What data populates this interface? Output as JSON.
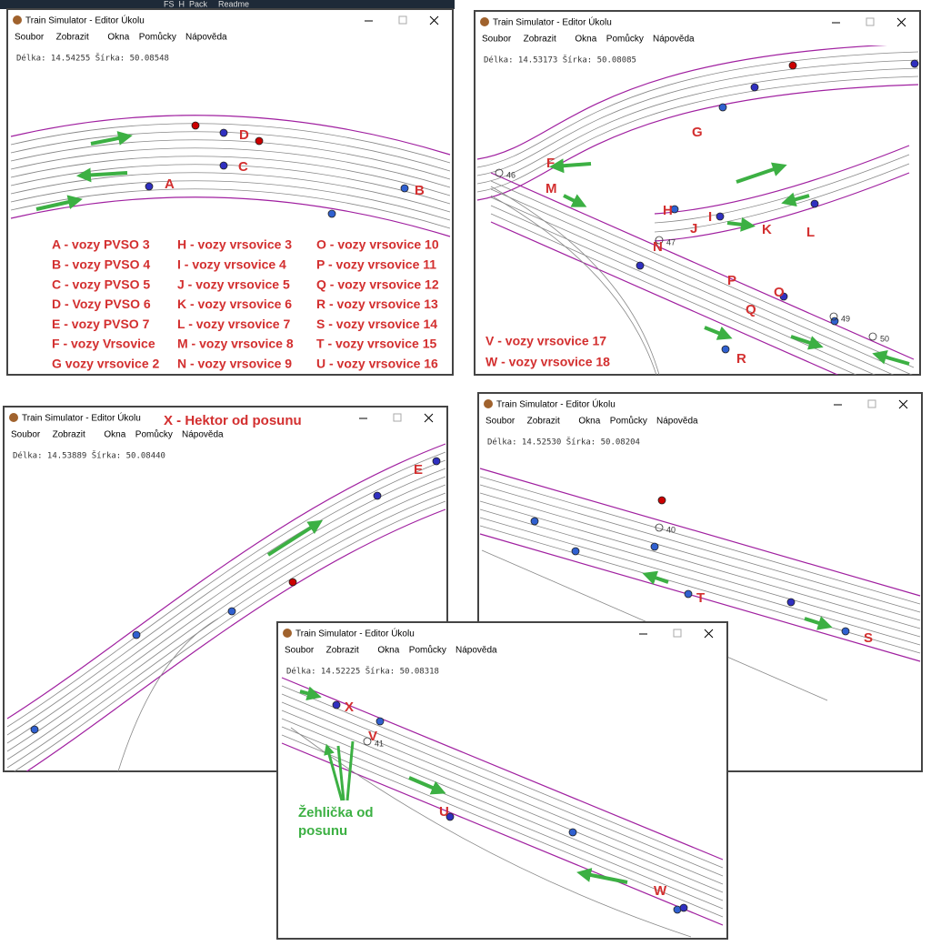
{
  "strip": [
    "FS_H_Pack",
    "Readme"
  ],
  "windows": [
    {
      "title": "Train Simulator - Editor Úkolu",
      "menu": [
        "Soubor",
        "Zobrazit",
        "Okna",
        "Pomůcky",
        "Nápověda"
      ],
      "coords": "Délka: 14.54255 Šírka: 50.08548",
      "labels": [
        "A",
        "B",
        "C",
        "D"
      ],
      "legend": [
        "A - vozy PVSO 3",
        "B - vozy PVSO 4",
        "C - vozy PVSO 5",
        "D - Vozy PVSO 6",
        "E - vozy PVSO 7",
        "F - vozy Vrsovice",
        "G vozy vrsovice 2",
        "H - vozy vrsovice 3",
        "I - vozy vrsovice 4",
        "J - vozy vrsovice 5",
        "K - vozy vrsovice 6",
        "L - vozy vrsovice 7",
        "M - vozy vrsovice 8",
        "N - vozy vrsovice 9",
        "O - vozy vrsovice 10",
        "P - vozy vrsovice 11",
        "Q - vozy vrsovice 12",
        "R - vozy vrsovice 13",
        "S - vozy vrsovice 14",
        "T - vozy vrsovice 15",
        "U - vozy vrsovice 16"
      ],
      "stations": []
    },
    {
      "title": "Train Simulator - Editor Úkolu",
      "menu": [
        "Soubor",
        "Zobrazit",
        "Okna",
        "Pomůcky",
        "Nápověda"
      ],
      "coords": "Délka: 14.53173 Šírka: 50.08085",
      "labels": [
        "G",
        "F",
        "M",
        "H",
        "I",
        "J",
        "K",
        "L",
        "N",
        "P",
        "O",
        "Q",
        "R"
      ],
      "legend": [
        "V - vozy vrsovice 17",
        "W - vozy vrsovice 18"
      ],
      "stations": [
        "46",
        "47",
        "49",
        "50"
      ]
    },
    {
      "title": "Train Simulator - Editor Úkolu",
      "menu": [
        "Soubor",
        "Zobrazit",
        "Okna",
        "Pomůcky",
        "Nápověda"
      ],
      "coords": "Délka: 14.53889 Šírka: 50.08440",
      "labels": [
        "E"
      ],
      "legend": [
        "X - Hektor od posunu"
      ],
      "stations": []
    },
    {
      "title": "Train Simulator - Editor Úkolu",
      "menu": [
        "Soubor",
        "Zobrazit",
        "Okna",
        "Pomůcky",
        "Nápověda"
      ],
      "coords": "Délka: 14.52530 Šírka: 50.08204",
      "labels": [
        "T",
        "S"
      ],
      "legend": [],
      "stations": [
        "40"
      ]
    },
    {
      "title": "Train Simulator - Editor Úkolu",
      "menu": [
        "Soubor",
        "Zobrazit",
        "Okna",
        "Pomůcky",
        "Nápověda"
      ],
      "coords": "Délka: 14.52225 Šírka: 50.08318",
      "labels": [
        "X",
        "V",
        "U",
        "W"
      ],
      "legend": [],
      "stations": [
        "41"
      ]
    }
  ],
  "annotation": "Žehlička od posunu"
}
